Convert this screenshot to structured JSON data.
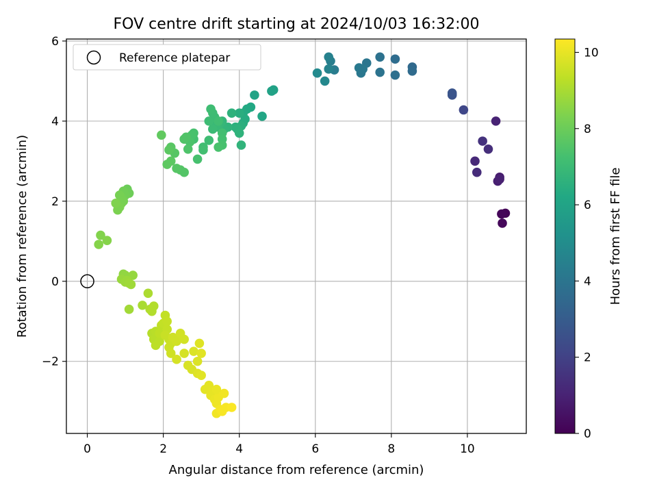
{
  "chart_data": {
    "type": "scatter",
    "title": "FOV centre drift starting at 2024/10/03 16:32:00",
    "xlabel": "Angular distance from reference (arcmin)",
    "ylabel": "Rotation from reference (arcmin)",
    "xlim": [
      -0.55,
      11.55
    ],
    "ylim": [
      -3.8,
      6.05
    ],
    "xticks": [
      0,
      2,
      4,
      6,
      8,
      10
    ],
    "yticks": [
      -2,
      0,
      2,
      4,
      6
    ],
    "xtick_labels": [
      "0",
      "2",
      "4",
      "6",
      "8",
      "10"
    ],
    "ytick_labels": [
      "−2",
      "0",
      "2",
      "4",
      "6"
    ],
    "grid": true,
    "legend": {
      "position": "top-left",
      "entries": [
        "Reference platepar"
      ]
    },
    "reference_point": {
      "x": 0,
      "y": 0
    },
    "colorbar": {
      "label": "Hours from first FF file",
      "colormap": "viridis",
      "range": [
        0,
        10.35
      ],
      "ticks": [
        0,
        2,
        4,
        6,
        8,
        10
      ],
      "tick_labels": [
        "0",
        "2",
        "4",
        "6",
        "8",
        "10"
      ]
    },
    "points": [
      {
        "x": 11.0,
        "y": 1.7,
        "h": 0.1
      },
      {
        "x": 10.9,
        "y": 1.68,
        "h": 0.15
      },
      {
        "x": 10.92,
        "y": 1.45,
        "h": 0.2
      },
      {
        "x": 10.85,
        "y": 2.6,
        "h": 0.8
      },
      {
        "x": 10.8,
        "y": 2.5,
        "h": 0.9
      },
      {
        "x": 10.85,
        "y": 2.55,
        "h": 0.95
      },
      {
        "x": 10.75,
        "y": 4.0,
        "h": 1.0
      },
      {
        "x": 10.55,
        "y": 3.3,
        "h": 1.4
      },
      {
        "x": 10.4,
        "y": 3.5,
        "h": 1.5
      },
      {
        "x": 10.2,
        "y": 3.0,
        "h": 1.2
      },
      {
        "x": 10.25,
        "y": 2.72,
        "h": 1.3
      },
      {
        "x": 9.9,
        "y": 4.28,
        "h": 2.2
      },
      {
        "x": 9.6,
        "y": 4.65,
        "h": 2.6
      },
      {
        "x": 9.6,
        "y": 4.7,
        "h": 2.7
      },
      {
        "x": 8.55,
        "y": 5.35,
        "h": 3.5
      },
      {
        "x": 8.55,
        "y": 5.25,
        "h": 3.6
      },
      {
        "x": 8.1,
        "y": 5.55,
        "h": 3.7
      },
      {
        "x": 8.1,
        "y": 5.15,
        "h": 3.8
      },
      {
        "x": 7.7,
        "y": 5.6,
        "h": 3.9
      },
      {
        "x": 7.7,
        "y": 5.22,
        "h": 3.95
      },
      {
        "x": 7.35,
        "y": 5.45,
        "h": 4.0
      },
      {
        "x": 7.2,
        "y": 5.2,
        "h": 4.1
      },
      {
        "x": 7.15,
        "y": 5.33,
        "h": 4.2
      },
      {
        "x": 7.25,
        "y": 5.3,
        "h": 4.15
      },
      {
        "x": 6.5,
        "y": 5.28,
        "h": 4.3
      },
      {
        "x": 6.4,
        "y": 5.5,
        "h": 4.4
      },
      {
        "x": 6.35,
        "y": 5.6,
        "h": 4.5
      },
      {
        "x": 6.35,
        "y": 5.3,
        "h": 4.6
      },
      {
        "x": 6.25,
        "y": 5.0,
        "h": 4.8
      },
      {
        "x": 6.05,
        "y": 5.2,
        "h": 4.9
      },
      {
        "x": 4.9,
        "y": 4.78,
        "h": 5.9
      },
      {
        "x": 4.85,
        "y": 4.75,
        "h": 5.95
      },
      {
        "x": 4.4,
        "y": 4.65,
        "h": 6.0
      },
      {
        "x": 4.6,
        "y": 4.12,
        "h": 6.1
      },
      {
        "x": 4.3,
        "y": 4.35,
        "h": 6.2
      },
      {
        "x": 4.2,
        "y": 4.3,
        "h": 6.25
      },
      {
        "x": 4.1,
        "y": 4.2,
        "h": 6.3
      },
      {
        "x": 4.15,
        "y": 4.05,
        "h": 6.35
      },
      {
        "x": 4.1,
        "y": 3.95,
        "h": 6.4
      },
      {
        "x": 4.0,
        "y": 4.2,
        "h": 6.45
      },
      {
        "x": 4.05,
        "y": 3.88,
        "h": 6.5
      },
      {
        "x": 3.9,
        "y": 3.85,
        "h": 6.55
      },
      {
        "x": 3.95,
        "y": 3.8,
        "h": 6.6
      },
      {
        "x": 4.0,
        "y": 3.7,
        "h": 6.65
      },
      {
        "x": 4.05,
        "y": 3.4,
        "h": 6.7
      },
      {
        "x": 3.8,
        "y": 4.2,
        "h": 6.6
      },
      {
        "x": 3.7,
        "y": 3.85,
        "h": 6.7
      },
      {
        "x": 3.6,
        "y": 3.8,
        "h": 6.75
      },
      {
        "x": 3.55,
        "y": 4.0,
        "h": 6.8
      },
      {
        "x": 3.5,
        "y": 3.95,
        "h": 6.85
      },
      {
        "x": 3.45,
        "y": 3.85,
        "h": 6.9
      },
      {
        "x": 3.4,
        "y": 3.9,
        "h": 6.95
      },
      {
        "x": 3.35,
        "y": 4.1,
        "h": 7.0
      },
      {
        "x": 3.3,
        "y": 4.2,
        "h": 7.05
      },
      {
        "x": 3.25,
        "y": 4.3,
        "h": 7.1
      },
      {
        "x": 3.45,
        "y": 4.0,
        "h": 7.15
      },
      {
        "x": 3.55,
        "y": 3.7,
        "h": 7.2
      },
      {
        "x": 3.55,
        "y": 3.55,
        "h": 7.25
      },
      {
        "x": 3.55,
        "y": 3.4,
        "h": 7.3
      },
      {
        "x": 3.45,
        "y": 3.35,
        "h": 7.35
      },
      {
        "x": 3.3,
        "y": 3.8,
        "h": 7.0
      },
      {
        "x": 3.2,
        "y": 4.0,
        "h": 7.05
      },
      {
        "x": 3.2,
        "y": 3.52,
        "h": 7.1
      },
      {
        "x": 3.05,
        "y": 3.35,
        "h": 7.15
      },
      {
        "x": 3.05,
        "y": 3.28,
        "h": 7.2
      },
      {
        "x": 2.9,
        "y": 3.05,
        "h": 7.3
      },
      {
        "x": 2.8,
        "y": 3.55,
        "h": 7.25
      },
      {
        "x": 2.8,
        "y": 3.7,
        "h": 7.3
      },
      {
        "x": 2.75,
        "y": 3.65,
        "h": 7.35
      },
      {
        "x": 2.7,
        "y": 3.48,
        "h": 7.4
      },
      {
        "x": 2.65,
        "y": 3.3,
        "h": 7.45
      },
      {
        "x": 2.6,
        "y": 3.6,
        "h": 7.5
      },
      {
        "x": 2.55,
        "y": 3.55,
        "h": 7.5
      },
      {
        "x": 2.55,
        "y": 2.72,
        "h": 7.55
      },
      {
        "x": 2.45,
        "y": 2.78,
        "h": 7.55
      },
      {
        "x": 2.35,
        "y": 2.82,
        "h": 7.6
      },
      {
        "x": 2.3,
        "y": 3.2,
        "h": 7.6
      },
      {
        "x": 2.2,
        "y": 3.35,
        "h": 7.65
      },
      {
        "x": 2.15,
        "y": 3.28,
        "h": 7.7
      },
      {
        "x": 2.2,
        "y": 3.0,
        "h": 7.7
      },
      {
        "x": 2.1,
        "y": 2.92,
        "h": 7.75
      },
      {
        "x": 1.95,
        "y": 3.65,
        "h": 7.8
      },
      {
        "x": 1.05,
        "y": 2.3,
        "h": 8.0
      },
      {
        "x": 1.1,
        "y": 2.2,
        "h": 8.05
      },
      {
        "x": 1.0,
        "y": 2.15,
        "h": 8.1
      },
      {
        "x": 0.95,
        "y": 2.25,
        "h": 8.1
      },
      {
        "x": 0.9,
        "y": 2.1,
        "h": 8.15
      },
      {
        "x": 0.85,
        "y": 2.15,
        "h": 8.2
      },
      {
        "x": 0.95,
        "y": 2.0,
        "h": 8.2
      },
      {
        "x": 0.9,
        "y": 1.95,
        "h": 8.25
      },
      {
        "x": 0.8,
        "y": 1.95,
        "h": 8.25
      },
      {
        "x": 0.85,
        "y": 1.85,
        "h": 8.3
      },
      {
        "x": 0.8,
        "y": 1.78,
        "h": 8.3
      },
      {
        "x": 0.75,
        "y": 1.95,
        "h": 8.35
      },
      {
        "x": 0.35,
        "y": 1.15,
        "h": 8.4
      },
      {
        "x": 0.3,
        "y": 0.92,
        "h": 8.45
      },
      {
        "x": 0.52,
        "y": 1.02,
        "h": 8.45
      },
      {
        "x": 0.95,
        "y": 0.18,
        "h": 8.6
      },
      {
        "x": 1.0,
        "y": 0.15,
        "h": 8.65
      },
      {
        "x": 1.2,
        "y": 0.15,
        "h": 8.7
      },
      {
        "x": 0.9,
        "y": 0.05,
        "h": 8.75
      },
      {
        "x": 1.0,
        "y": -0.02,
        "h": 8.8
      },
      {
        "x": 1.05,
        "y": 0.02,
        "h": 8.8
      },
      {
        "x": 1.1,
        "y": -0.05,
        "h": 8.85
      },
      {
        "x": 1.15,
        "y": -0.08,
        "h": 8.85
      },
      {
        "x": 1.1,
        "y": -0.7,
        "h": 8.9
      },
      {
        "x": 1.45,
        "y": -0.6,
        "h": 9.0
      },
      {
        "x": 1.6,
        "y": -0.3,
        "h": 9.05
      },
      {
        "x": 1.65,
        "y": -0.7,
        "h": 9.1
      },
      {
        "x": 1.7,
        "y": -0.75,
        "h": 9.15
      },
      {
        "x": 1.75,
        "y": -0.62,
        "h": 9.15
      },
      {
        "x": 1.7,
        "y": -1.3,
        "h": 9.2
      },
      {
        "x": 1.8,
        "y": -1.25,
        "h": 9.25
      },
      {
        "x": 1.75,
        "y": -1.45,
        "h": 9.25
      },
      {
        "x": 1.8,
        "y": -1.6,
        "h": 9.3
      },
      {
        "x": 1.9,
        "y": -1.5,
        "h": 9.3
      },
      {
        "x": 1.9,
        "y": -1.3,
        "h": 9.35
      },
      {
        "x": 1.95,
        "y": -1.1,
        "h": 9.35
      },
      {
        "x": 2.0,
        "y": -1.05,
        "h": 9.4
      },
      {
        "x": 2.05,
        "y": -0.85,
        "h": 9.4
      },
      {
        "x": 2.1,
        "y": -1.0,
        "h": 9.45
      },
      {
        "x": 2.1,
        "y": -1.2,
        "h": 9.45
      },
      {
        "x": 2.05,
        "y": -1.35,
        "h": 9.5
      },
      {
        "x": 2.15,
        "y": -1.45,
        "h": 9.5
      },
      {
        "x": 2.2,
        "y": -1.55,
        "h": 9.55
      },
      {
        "x": 2.15,
        "y": -1.65,
        "h": 9.55
      },
      {
        "x": 2.2,
        "y": -1.8,
        "h": 9.6
      },
      {
        "x": 2.25,
        "y": -1.4,
        "h": 9.6
      },
      {
        "x": 2.35,
        "y": -1.5,
        "h": 9.62
      },
      {
        "x": 2.45,
        "y": -1.3,
        "h": 9.65
      },
      {
        "x": 2.55,
        "y": -1.45,
        "h": 9.65
      },
      {
        "x": 2.35,
        "y": -1.95,
        "h": 9.7
      },
      {
        "x": 2.55,
        "y": -1.8,
        "h": 9.7
      },
      {
        "x": 2.65,
        "y": -2.1,
        "h": 9.75
      },
      {
        "x": 2.75,
        "y": -2.2,
        "h": 9.75
      },
      {
        "x": 2.8,
        "y": -1.75,
        "h": 9.8
      },
      {
        "x": 2.9,
        "y": -2.0,
        "h": 9.8
      },
      {
        "x": 2.9,
        "y": -2.3,
        "h": 9.85
      },
      {
        "x": 2.95,
        "y": -1.55,
        "h": 9.85
      },
      {
        "x": 3.0,
        "y": -1.8,
        "h": 9.9
      },
      {
        "x": 3.0,
        "y": -2.35,
        "h": 9.9
      },
      {
        "x": 3.1,
        "y": -2.7,
        "h": 9.95
      },
      {
        "x": 3.2,
        "y": -2.6,
        "h": 9.95
      },
      {
        "x": 3.25,
        "y": -2.85,
        "h": 10.0
      },
      {
        "x": 3.3,
        "y": -2.75,
        "h": 10.0
      },
      {
        "x": 3.35,
        "y": -2.95,
        "h": 10.05
      },
      {
        "x": 3.4,
        "y": -3.05,
        "h": 10.1
      },
      {
        "x": 3.4,
        "y": -3.3,
        "h": 10.15
      },
      {
        "x": 3.5,
        "y": -3.2,
        "h": 10.2
      },
      {
        "x": 3.55,
        "y": -3.25,
        "h": 10.25
      },
      {
        "x": 3.45,
        "y": -2.9,
        "h": 10.1
      },
      {
        "x": 3.6,
        "y": -2.8,
        "h": 10.15
      },
      {
        "x": 3.65,
        "y": -3.15,
        "h": 10.25
      },
      {
        "x": 3.8,
        "y": -3.15,
        "h": 10.3
      },
      {
        "x": 3.4,
        "y": -2.7,
        "h": 10.05
      }
    ]
  }
}
